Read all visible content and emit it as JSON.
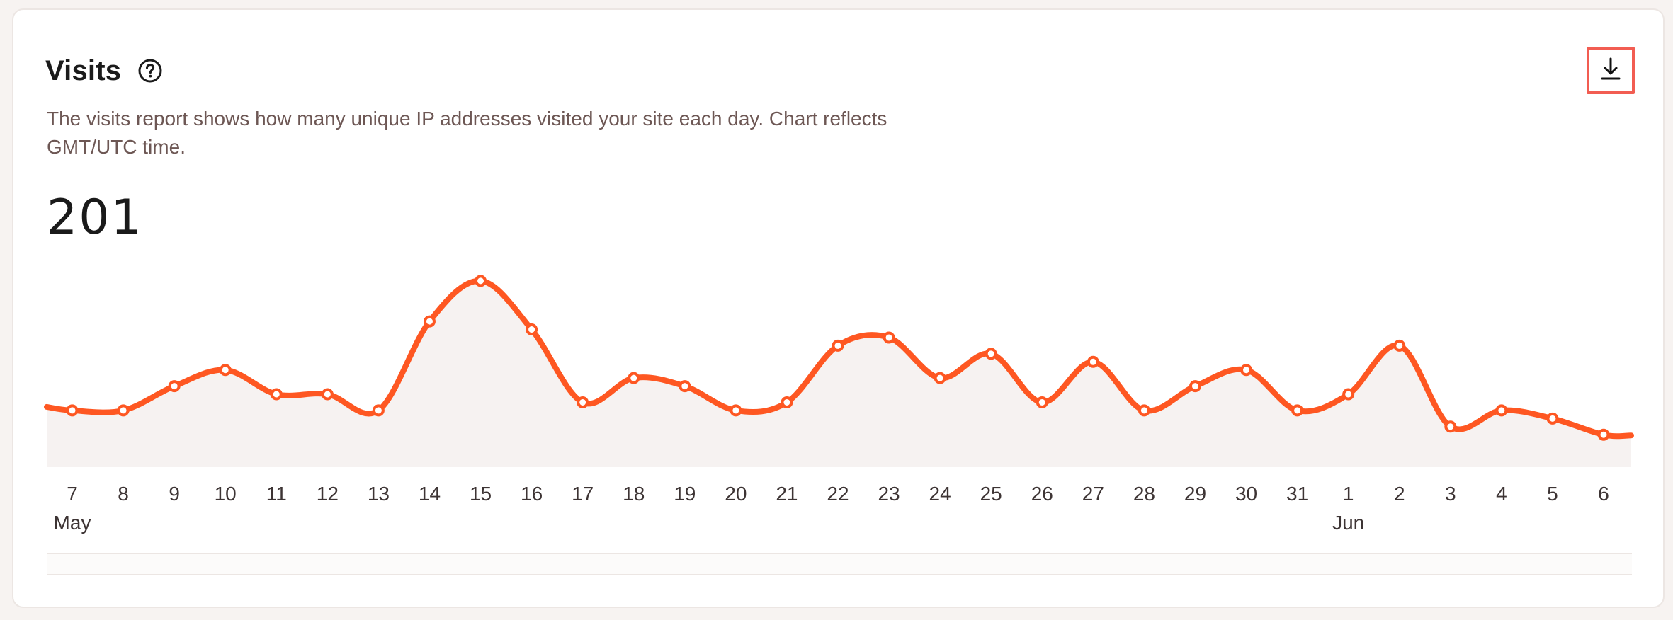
{
  "header": {
    "title": "Visits",
    "description": "The visits report shows how many unique IP addresses visited your site each day. Chart reflects GMT/UTC time.",
    "total": "201"
  },
  "icons": {
    "help": "help-circle-icon",
    "download": "download-icon"
  },
  "colors": {
    "line": "#fe5722",
    "fill": "#f6f2f1",
    "highlight": "#f25d52"
  },
  "chart_data": {
    "type": "area",
    "x": [
      "7",
      "8",
      "9",
      "10",
      "11",
      "12",
      "13",
      "14",
      "15",
      "16",
      "17",
      "18",
      "19",
      "20",
      "21",
      "22",
      "23",
      "24",
      "25",
      "26",
      "27",
      "28",
      "29",
      "30",
      "31",
      "1",
      "2",
      "3",
      "4",
      "5",
      "6"
    ],
    "month_labels": [
      {
        "label": "May",
        "at": "7"
      },
      {
        "label": "Jun",
        "at": "1"
      }
    ],
    "values": [
      7,
      7,
      10,
      12,
      9,
      9,
      7,
      18,
      23,
      17,
      8,
      11,
      10,
      7,
      8,
      15,
      16,
      11,
      14,
      8,
      13,
      7,
      10,
      12,
      7,
      9,
      15,
      5,
      7,
      6,
      4
    ],
    "ylim": [
      0,
      25
    ],
    "grid": false,
    "legend": "none"
  }
}
